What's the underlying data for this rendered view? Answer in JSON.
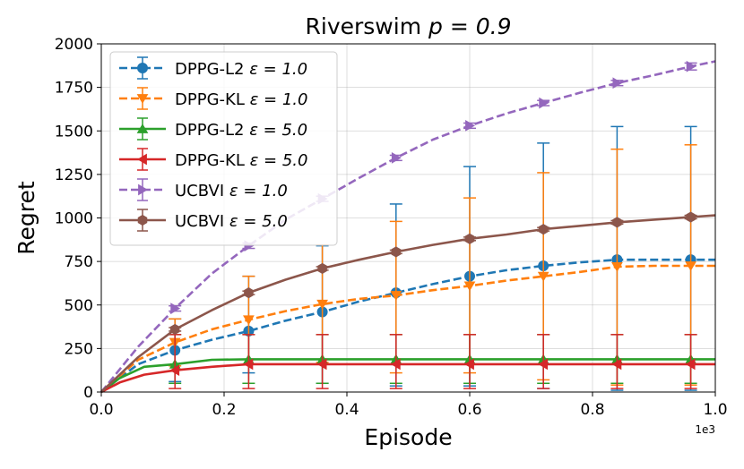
{
  "chart_data": {
    "type": "line",
    "title_prefix": "Riverswim ",
    "title_math": "p = 0.9",
    "xlabel": "Episode",
    "ylabel": "Regret",
    "x_offset_label": "1e3",
    "xlim": [
      0,
      1.0
    ],
    "ylim": [
      0,
      2000
    ],
    "x_ticks": [
      0.0,
      0.2,
      0.4,
      0.6,
      0.8,
      1.0
    ],
    "x_tick_labels": [
      "0.0",
      "0.2",
      "0.4",
      "0.6",
      "0.8",
      "1.0"
    ],
    "y_ticks": [
      0,
      250,
      500,
      750,
      1000,
      1250,
      1500,
      1750,
      2000
    ],
    "y_tick_labels": [
      "0",
      "250",
      "500",
      "750",
      "1000",
      "1250",
      "1500",
      "1750",
      "2000"
    ],
    "grid": true,
    "legend_position": "top-left",
    "series": [
      {
        "name": "DPPG-L2 ε = 1.0",
        "label_text": "DPPG-L2 ",
        "label_math": "ε = 1.0",
        "color": "#1f77b4",
        "dash": "dashed",
        "marker": "circle",
        "x": [
          0.0,
          0.06,
          0.12,
          0.18,
          0.24,
          0.3,
          0.36,
          0.42,
          0.48,
          0.54,
          0.6,
          0.66,
          0.72,
          0.78,
          0.84,
          0.9,
          0.96,
          1.0
        ],
        "y": [
          0,
          160,
          240,
          300,
          350,
          410,
          460,
          520,
          570,
          620,
          665,
          700,
          725,
          745,
          760,
          760,
          760,
          760
        ],
        "markers_x": [
          0.12,
          0.24,
          0.36,
          0.48,
          0.6,
          0.72,
          0.84,
          0.96
        ],
        "markers_y": [
          240,
          350,
          460,
          570,
          665,
          725,
          760,
          760
        ],
        "err_low": [
          60,
          110,
          50,
          35,
          35,
          20,
          10,
          10
        ],
        "err_high": [
          420,
          665,
          840,
          1080,
          1295,
          1430,
          1525,
          1525
        ]
      },
      {
        "name": "DPPG-KL ε = 1.0",
        "label_text": "DPPG-KL ",
        "label_math": "ε = 1.0",
        "color": "#ff7f0e",
        "dash": "dashed",
        "marker": "triangle-down",
        "x": [
          0.0,
          0.06,
          0.12,
          0.18,
          0.24,
          0.3,
          0.36,
          0.42,
          0.48,
          0.54,
          0.6,
          0.66,
          0.72,
          0.78,
          0.84,
          0.9,
          0.96,
          1.0
        ],
        "y": [
          0,
          185,
          285,
          360,
          415,
          465,
          505,
          535,
          555,
          585,
          610,
          640,
          665,
          690,
          720,
          725,
          725,
          725
        ],
        "markers_x": [
          0.12,
          0.24,
          0.36,
          0.48,
          0.6,
          0.72,
          0.84,
          0.96
        ],
        "markers_y": [
          285,
          415,
          505,
          555,
          610,
          665,
          720,
          725
        ],
        "err_low": [
          150,
          160,
          170,
          110,
          110,
          70,
          40,
          40
        ],
        "err_high": [
          420,
          665,
          845,
          980,
          1115,
          1260,
          1395,
          1420
        ]
      },
      {
        "name": "DPPG-L2 ε = 5.0",
        "label_text": "DPPG-L2 ",
        "label_math": "ε = 5.0",
        "color": "#2ca02c",
        "dash": "solid",
        "marker": "triangle-up",
        "x": [
          0.0,
          0.03,
          0.07,
          0.12,
          0.18,
          0.24,
          0.3,
          0.36,
          0.48,
          0.6,
          0.72,
          0.84,
          0.96,
          1.0
        ],
        "y": [
          0,
          80,
          145,
          160,
          185,
          188,
          188,
          188,
          188,
          188,
          188,
          188,
          188,
          188
        ],
        "markers_x": [
          0.12,
          0.24,
          0.36,
          0.48,
          0.6,
          0.72,
          0.84,
          0.96
        ],
        "markers_y": [
          160,
          188,
          188,
          188,
          188,
          188,
          188,
          188
        ],
        "err_low": [
          50,
          50,
          50,
          50,
          50,
          50,
          50,
          50
        ],
        "err_high": [
          330,
          330,
          330,
          330,
          330,
          330,
          330,
          330
        ]
      },
      {
        "name": "DPPG-KL ε = 5.0",
        "label_text": "DPPG-KL ",
        "label_math": "ε = 5.0",
        "color": "#d62728",
        "dash": "solid",
        "marker": "triangle-left",
        "x": [
          0.0,
          0.03,
          0.07,
          0.12,
          0.18,
          0.24,
          0.3,
          0.36,
          0.48,
          0.6,
          0.72,
          0.84,
          0.96,
          1.0
        ],
        "y": [
          0,
          55,
          100,
          125,
          145,
          160,
          160,
          160,
          160,
          160,
          160,
          160,
          160,
          160
        ],
        "markers_x": [
          0.12,
          0.24,
          0.36,
          0.48,
          0.6,
          0.72,
          0.84,
          0.96
        ],
        "markers_y": [
          125,
          160,
          160,
          160,
          160,
          160,
          160,
          160
        ],
        "err_low": [
          20,
          20,
          20,
          20,
          20,
          20,
          20,
          20
        ],
        "err_high": [
          330,
          330,
          330,
          330,
          330,
          330,
          330,
          330
        ]
      },
      {
        "name": "UCBVI ε = 1.0",
        "label_text": "UCBVI ",
        "label_math": "ε = 1.0",
        "color": "#9467bd",
        "dash": "dashed",
        "marker": "triangle-right",
        "x": [
          0.0,
          0.06,
          0.12,
          0.18,
          0.24,
          0.3,
          0.36,
          0.42,
          0.48,
          0.54,
          0.6,
          0.66,
          0.72,
          0.78,
          0.84,
          0.9,
          0.96,
          1.0
        ],
        "y": [
          0,
          260,
          480,
          680,
          840,
          990,
          1110,
          1230,
          1345,
          1450,
          1530,
          1600,
          1660,
          1720,
          1775,
          1820,
          1870,
          1900
        ],
        "markers_x": [
          0.12,
          0.24,
          0.36,
          0.48,
          0.6,
          0.72,
          0.84,
          0.96
        ],
        "markers_y": [
          480,
          840,
          1110,
          1345,
          1530,
          1660,
          1775,
          1870
        ],
        "err_low": [
          465,
          825,
          1095,
          1330,
          1515,
          1645,
          1760,
          1850
        ],
        "err_high": [
          495,
          855,
          1125,
          1360,
          1545,
          1675,
          1790,
          1890
        ]
      },
      {
        "name": "UCBVI ε = 5.0",
        "label_text": "UCBVI ",
        "label_math": "ε = 5.0",
        "color": "#8c564b",
        "dash": "solid",
        "marker": "hexagon",
        "x": [
          0.0,
          0.06,
          0.12,
          0.18,
          0.24,
          0.3,
          0.36,
          0.42,
          0.48,
          0.54,
          0.6,
          0.66,
          0.72,
          0.78,
          0.84,
          0.9,
          0.96,
          1.0
        ],
        "y": [
          0,
          200,
          360,
          470,
          570,
          645,
          710,
          760,
          805,
          845,
          880,
          905,
          935,
          955,
          975,
          990,
          1005,
          1015
        ],
        "markers_x": [
          0.12,
          0.24,
          0.36,
          0.48,
          0.6,
          0.72,
          0.84,
          0.96
        ],
        "markers_y": [
          360,
          570,
          710,
          805,
          880,
          935,
          975,
          1005
        ],
        "err_low": [
          350,
          560,
          700,
          795,
          870,
          925,
          965,
          995
        ],
        "err_high": [
          370,
          580,
          720,
          815,
          890,
          945,
          985,
          1015
        ]
      }
    ]
  }
}
